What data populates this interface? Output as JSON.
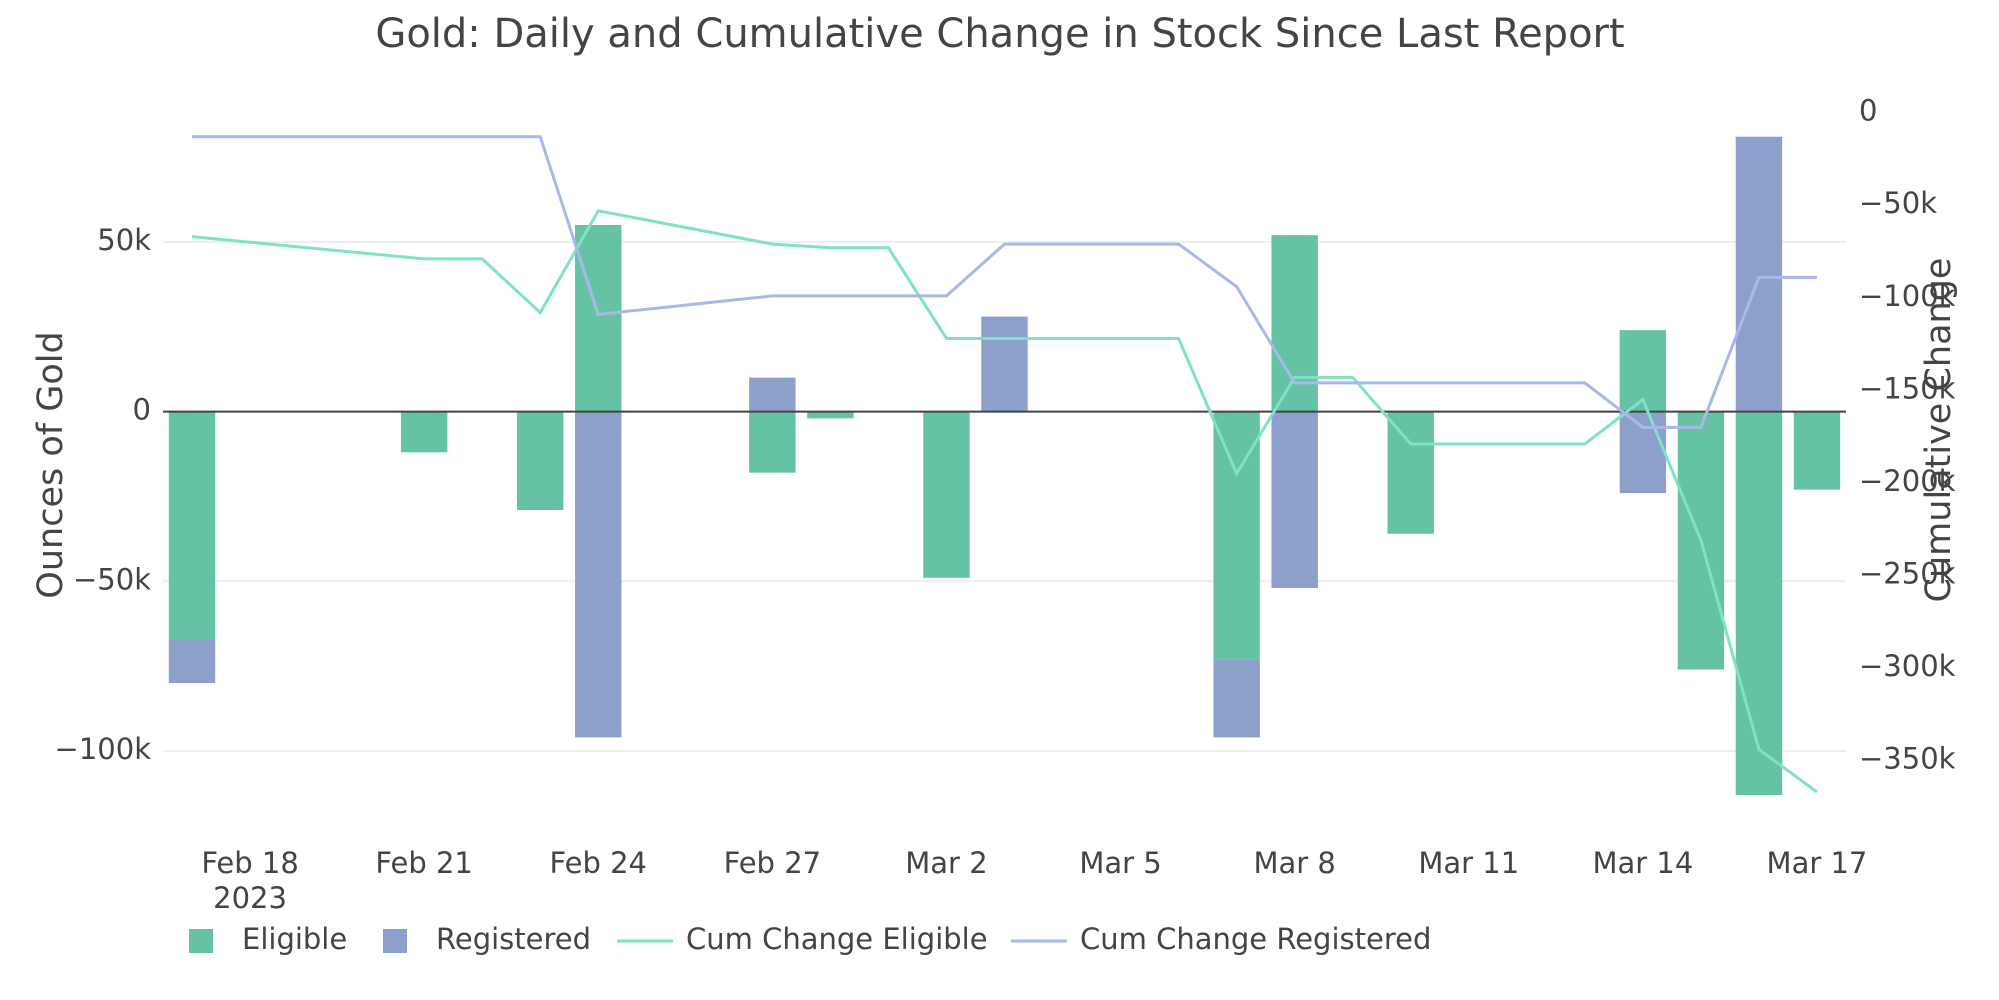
{
  "chart_data": {
    "type": "bar",
    "barmode": "relative",
    "title": "Gold: Daily and Cumulative Change in Stock Since Last Report",
    "y_label": "Ounces of Gold",
    "y2_label": "Cumulative Change",
    "x": [
      "2023-02-17",
      "2023-02-21",
      "2023-02-22",
      "2023-02-23",
      "2023-02-24",
      "2023-02-27",
      "2023-02-28",
      "2023-03-01",
      "2023-03-02",
      "2023-03-03",
      "2023-03-06",
      "2023-03-07",
      "2023-03-08",
      "2023-03-09",
      "2023-03-10",
      "2023-03-13",
      "2023-03-14",
      "2023-03-15",
      "2023-03-16",
      "2023-03-17"
    ],
    "xlim": [
      "2023-02-16T12:00:00Z",
      "2023-03-17T12:00:00Z"
    ],
    "xticks": [
      {
        "value": "2023-02-18",
        "label": "Feb 18\n2023"
      },
      {
        "value": "2023-02-21",
        "label": "Feb 21"
      },
      {
        "value": "2023-02-24",
        "label": "Feb 24"
      },
      {
        "value": "2023-02-27",
        "label": "Feb 27"
      },
      {
        "value": "2023-03-02",
        "label": "Mar 2"
      },
      {
        "value": "2023-03-05",
        "label": "Mar 5"
      },
      {
        "value": "2023-03-08",
        "label": "Mar 8"
      },
      {
        "value": "2023-03-11",
        "label": "Mar 11"
      },
      {
        "value": "2023-03-14",
        "label": "Mar 14"
      },
      {
        "value": "2023-03-17",
        "label": "Mar 17"
      }
    ],
    "ylim": [
      -123000,
      93000
    ],
    "yticks": [
      {
        "value": -100000,
        "label": "−100k"
      },
      {
        "value": -50000,
        "label": "−50k"
      },
      0,
      {
        "value": 50000,
        "label": "50k"
      }
    ],
    "y2lim": [
      -387000,
      9000
    ],
    "y2ticks": [
      0,
      {
        "value": -50000,
        "label": "−50k"
      },
      {
        "value": -100000,
        "label": "−100k"
      },
      {
        "value": -150000,
        "label": "−150k"
      },
      {
        "value": -200000,
        "label": "−200k"
      },
      {
        "value": -250000,
        "label": "−250k"
      },
      {
        "value": -300000,
        "label": "−300k"
      },
      {
        "value": -350000,
        "label": "−350k"
      }
    ],
    "grid": true,
    "series": [
      {
        "name": "Eligible",
        "type": "bar",
        "color": "#66c2a5",
        "values": [
          -67000,
          -12000,
          0,
          -29000,
          55000,
          -18000,
          -2000,
          0,
          -49000,
          0,
          0,
          -73000,
          52000,
          0,
          -36000,
          0,
          24000,
          -76000,
          -113000,
          -23000
        ]
      },
      {
        "name": "Registered",
        "type": "bar",
        "color": "#8da0cb",
        "values": [
          -13000,
          0,
          0,
          0,
          -96000,
          10000,
          0,
          0,
          0,
          28000,
          0,
          -23000,
          -52000,
          0,
          0,
          0,
          -24000,
          0,
          81000,
          0
        ]
      },
      {
        "name": "Cum Change Eligible",
        "type": "line",
        "axis": "y2",
        "color": "#7fe3c3",
        "values": [
          -67000,
          -79000,
          -79000,
          -108000,
          -53000,
          -71000,
          -73000,
          -73000,
          -122000,
          -122000,
          -122000,
          -195000,
          -143000,
          -143000,
          -179000,
          -179000,
          -155000,
          -231000,
          -344000,
          -367000
        ]
      },
      {
        "name": "Cum Change Registered",
        "type": "line",
        "axis": "y2",
        "color": "#a9b8e8",
        "values": [
          -13000,
          -13000,
          -13000,
          -13000,
          -109000,
          -99000,
          -99000,
          -99000,
          -99000,
          -71000,
          -71000,
          -94000,
          -146000,
          -146000,
          -146000,
          -146000,
          -170000,
          -170000,
          -89000,
          -89000
        ]
      }
    ]
  }
}
